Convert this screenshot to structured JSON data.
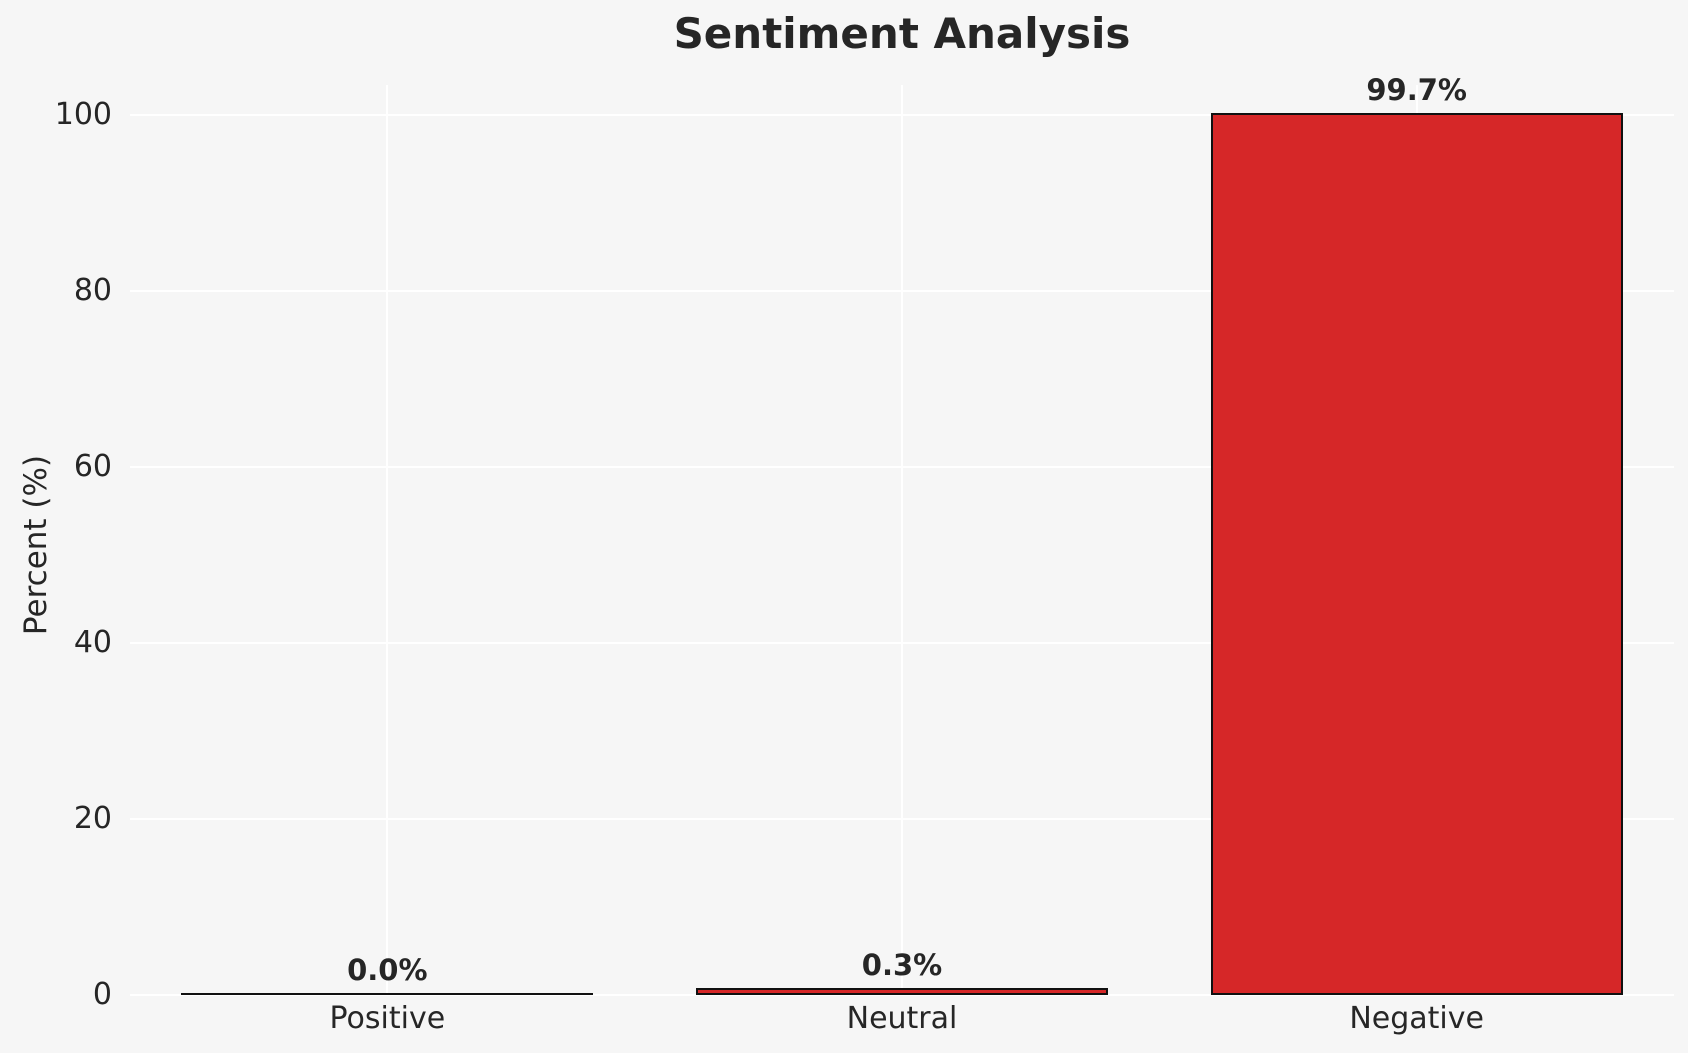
{
  "chart_data": {
    "type": "bar",
    "title": "Sentiment Analysis",
    "xlabel": "",
    "ylabel": "Percent (%)",
    "categories": [
      "Positive",
      "Neutral",
      "Negative"
    ],
    "values": [
      0.0,
      0.3,
      99.7
    ],
    "bar_labels": [
      "0.0%",
      "0.3%",
      "99.7%"
    ],
    "yticks": [
      0,
      20,
      40,
      60,
      80,
      100
    ],
    "ylim": [
      0,
      103.4
    ],
    "bar_width_fraction": 0.8,
    "grid": "on",
    "legend": "none",
    "colors": {
      "bar_fill": "#d62728",
      "bar_edge": "#111111",
      "background": "#f6f6f6",
      "gridline": "#ffffff",
      "text": "#262626"
    }
  }
}
